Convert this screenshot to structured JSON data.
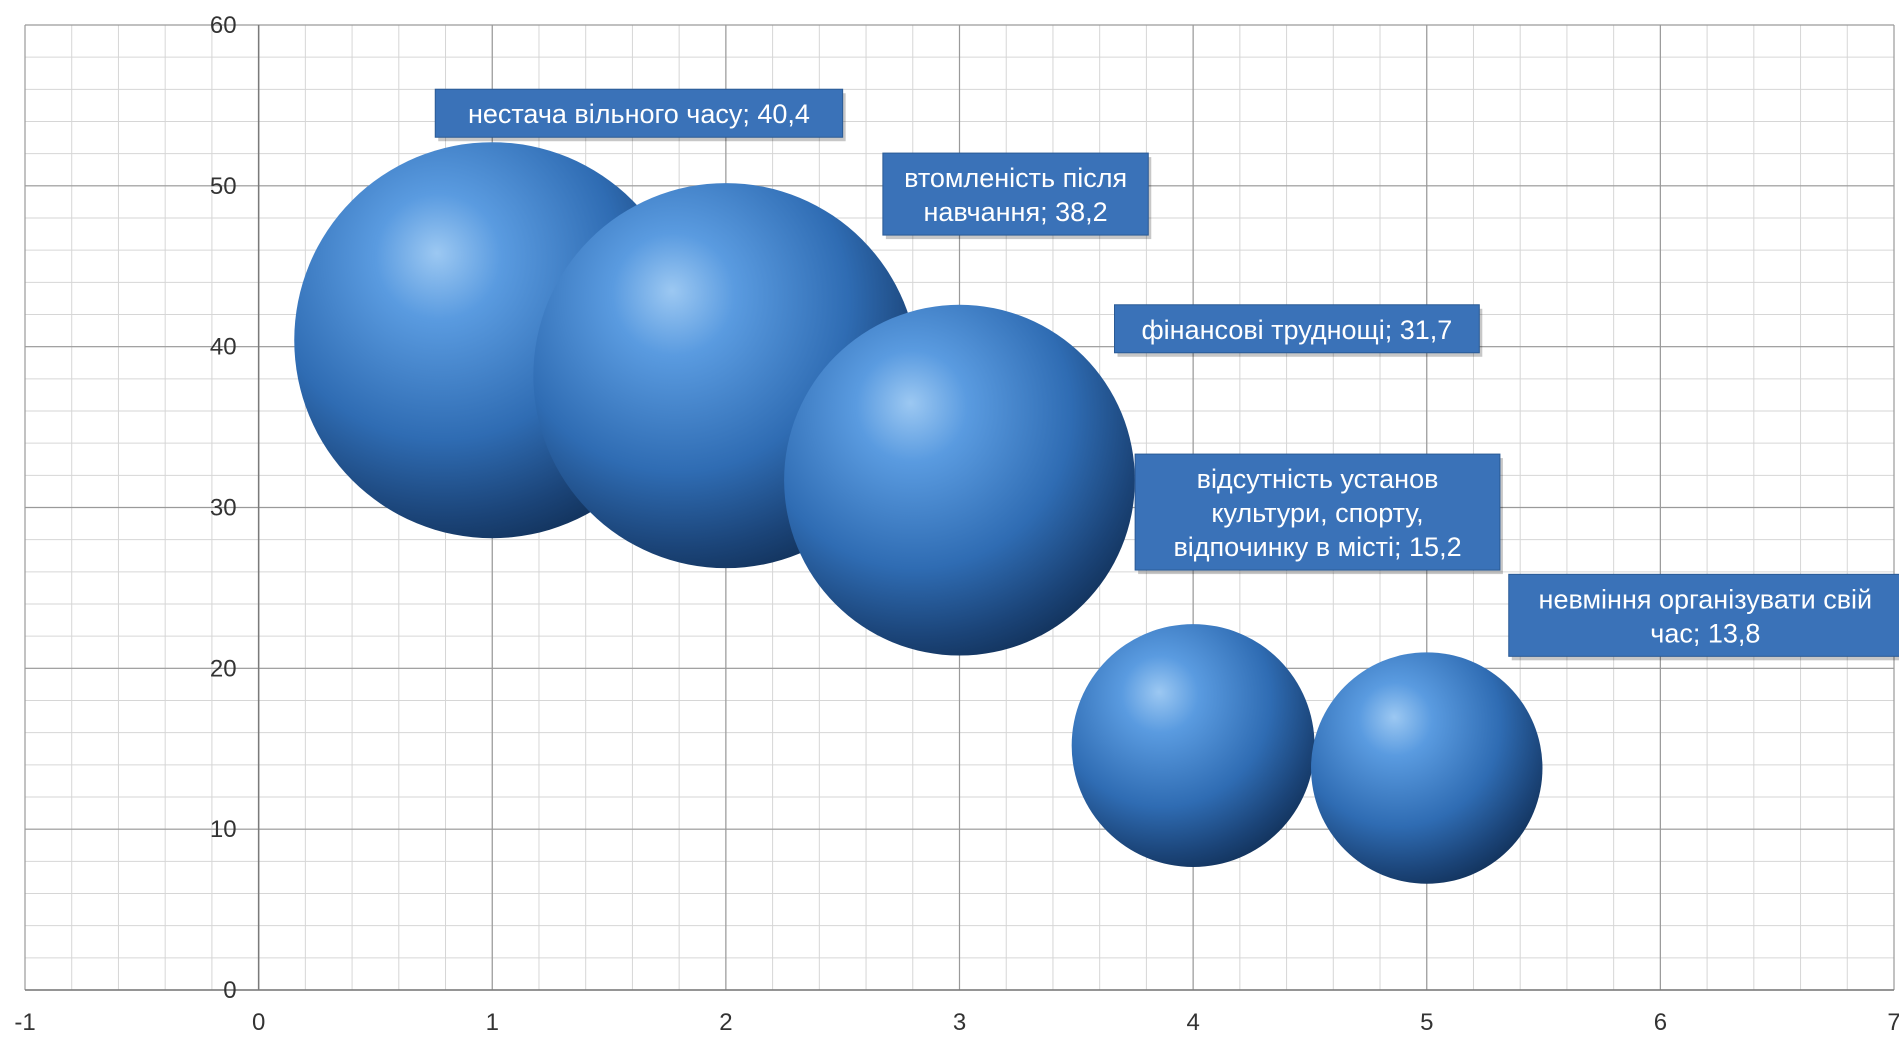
{
  "chart_data": {
    "type": "bubble",
    "title": "",
    "xlabel": "",
    "ylabel": "",
    "xlim": [
      -1,
      7
    ],
    "ylim": [
      0,
      60
    ],
    "x_ticks": [
      "-1",
      "0",
      "1",
      "2",
      "3",
      "4",
      "5",
      "6",
      "7"
    ],
    "y_ticks": [
      "0",
      "10",
      "20",
      "30",
      "40",
      "50",
      "60"
    ],
    "grid": true,
    "bubble_color": "#3a78c2",
    "label_color": "#3a72b8",
    "points": [
      {
        "x": 1,
        "y": 40.4,
        "size": 40.4,
        "label_lines": [
          "нестача вільного часу; 40,4"
        ]
      },
      {
        "x": 2,
        "y": 38.2,
        "size": 38.2,
        "label_lines": [
          "втомленість після",
          "навчання; 38,2"
        ]
      },
      {
        "x": 3,
        "y": 31.7,
        "size": 31.7,
        "label_lines": [
          "фінансові труднощі; 31,7"
        ]
      },
      {
        "x": 4,
        "y": 15.2,
        "size": 15.2,
        "label_lines": [
          "відсутність установ",
          "культури, спорту,",
          "відпочинку в місті; 15,2"
        ]
      },
      {
        "x": 5,
        "y": 13.8,
        "size": 13.8,
        "label_lines": [
          "невміння організувати свій",
          "час; 13,8"
        ]
      }
    ]
  }
}
